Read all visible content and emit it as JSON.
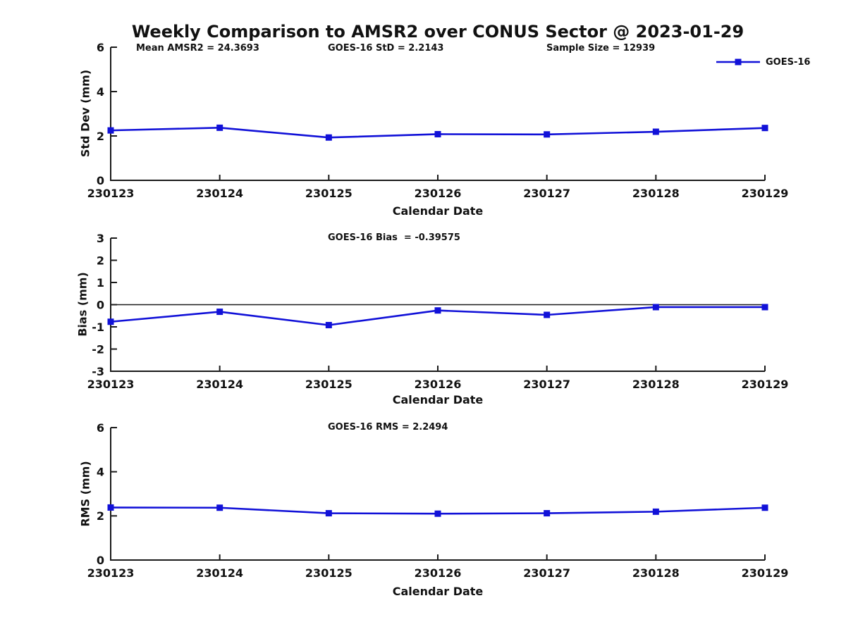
{
  "figure": {
    "title": "Weekly Comparison to AMSR2 over CONUS Sector @ 2023-01-29",
    "legend": {
      "label": "GOES-16",
      "series_color": "#1111d8"
    }
  },
  "chart_data": [
    {
      "type": "line",
      "ylabel": "Std Dev (mm)",
      "xlabel": "Calendar Date",
      "categories": [
        "230123",
        "230124",
        "230125",
        "230126",
        "230127",
        "230128",
        "230129"
      ],
      "series": [
        {
          "name": "GOES-16",
          "color": "#1111d8",
          "marker": "square",
          "values": [
            2.25,
            2.37,
            1.93,
            2.08,
            2.07,
            2.19,
            2.36
          ]
        }
      ],
      "ylim": [
        0,
        6
      ],
      "yticks": [
        0,
        2,
        4,
        6
      ],
      "zero_line": false,
      "grid": false,
      "legend_position": "top-right-outside",
      "annotations": [
        "Mean AMSR2 = 24.3693",
        "GOES-16 StD = 2.2143",
        "Sample Size = 12939"
      ]
    },
    {
      "type": "line",
      "ylabel": "Bias (mm)",
      "xlabel": "Calendar Date",
      "categories": [
        "230123",
        "230124",
        "230125",
        "230126",
        "230127",
        "230128",
        "230129"
      ],
      "series": [
        {
          "name": "GOES-16",
          "color": "#1111d8",
          "marker": "square",
          "values": [
            -0.77,
            -0.32,
            -0.92,
            -0.26,
            -0.46,
            -0.11,
            -0.11
          ]
        }
      ],
      "ylim": [
        -3,
        3
      ],
      "yticks": [
        -3,
        -2,
        -1,
        0,
        1,
        2,
        3
      ],
      "zero_line": true,
      "grid": false,
      "annotations": [
        "GOES-16 Bias  = -0.39575"
      ]
    },
    {
      "type": "line",
      "ylabel": "RMS (mm)",
      "xlabel": "Calendar Date",
      "categories": [
        "230123",
        "230124",
        "230125",
        "230126",
        "230127",
        "230128",
        "230129"
      ],
      "series": [
        {
          "name": "GOES-16",
          "color": "#1111d8",
          "marker": "square",
          "values": [
            2.38,
            2.37,
            2.12,
            2.1,
            2.12,
            2.19,
            2.37
          ]
        }
      ],
      "ylim": [
        0,
        6
      ],
      "yticks": [
        0,
        2,
        4,
        6
      ],
      "zero_line": false,
      "grid": false,
      "annotations": [
        "GOES-16 RMS = 2.2494"
      ]
    }
  ]
}
